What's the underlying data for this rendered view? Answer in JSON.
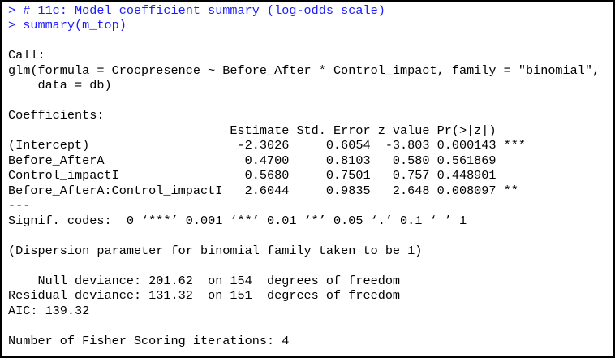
{
  "commands": [
    "> # 11c: Model coefficient summary (log-odds scale)",
    "> summary(m_top)"
  ],
  "output": [
    "Call:",
    "glm(formula = Crocpresence ~ Before_After * Control_impact, family = \"binomial\",",
    "    data = db)",
    "Coefficients:",
    "                              Estimate Std. Error z value Pr(>|z|)",
    "(Intercept)                    -2.3026     0.6054  -3.803 0.000143 ***",
    "Before_AfterA                   0.4700     0.8103   0.580 0.561869",
    "Control_impactI                 0.5680     0.7501   0.757 0.448901",
    "Before_AfterA:Control_impactI   2.6044     0.9835   2.648 0.008097 **",
    "---",
    "Signif. codes:  0 ‘***’ 0.001 ‘**’ 0.01 ‘*’ 0.05 ‘.’ 0.1 ‘ ’ 1",
    "(Dispersion parameter for binomial family taken to be 1)",
    "    Null deviance: 201.62  on 154  degrees of freedom",
    "Residual deviance: 131.32  on 151  degrees of freedom",
    "AIC: 139.32",
    "Number of Fisher Scoring iterations: 4"
  ]
}
